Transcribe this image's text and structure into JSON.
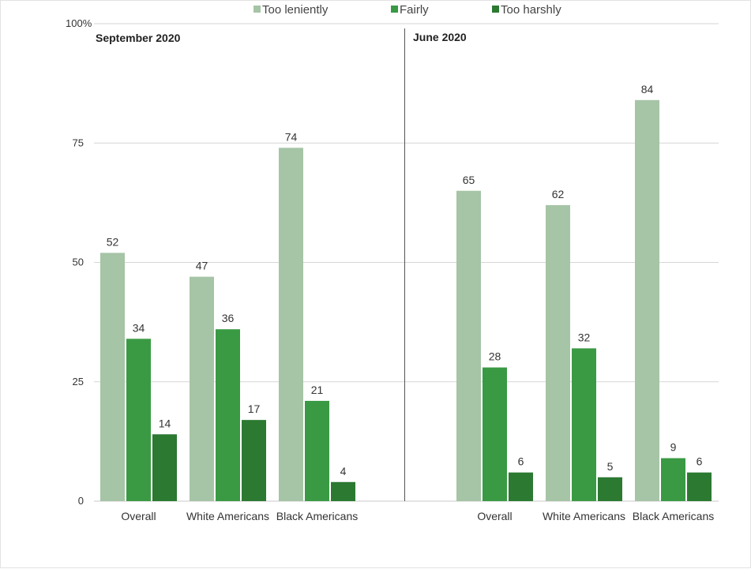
{
  "chart_data": {
    "type": "bar",
    "legend": {
      "position": "top-center",
      "entries": [
        {
          "name": "Too leniently",
          "color": "#a6c4a6"
        },
        {
          "name": "Fairly",
          "color": "#3a9a44"
        },
        {
          "name": "Too harshly",
          "color": "#2c7932"
        }
      ]
    },
    "y_axis": {
      "ylim": [
        0,
        100
      ],
      "ticks": [
        0,
        25,
        50,
        75,
        100
      ],
      "tick_labels": [
        "0",
        "25",
        "50",
        "75",
        "100%"
      ]
    },
    "grid": true,
    "panels": [
      {
        "title": "September 2020",
        "categories": [
          "Overall",
          "White Americans",
          "Black Americans"
        ],
        "series": [
          {
            "name": "Too leniently",
            "values": [
              52,
              47,
              74
            ]
          },
          {
            "name": "Fairly",
            "values": [
              34,
              36,
              21
            ]
          },
          {
            "name": "Too harshly",
            "values": [
              14,
              17,
              4
            ]
          }
        ]
      },
      {
        "title": "June 2020",
        "categories": [
          "Overall",
          "White Americans",
          "Black Americans"
        ],
        "series": [
          {
            "name": "Too leniently",
            "values": [
              65,
              62,
              84
            ]
          },
          {
            "name": "Fairly",
            "values": [
              28,
              32,
              9
            ]
          },
          {
            "name": "Too harshly",
            "values": [
              6,
              5,
              6
            ]
          }
        ]
      }
    ]
  }
}
